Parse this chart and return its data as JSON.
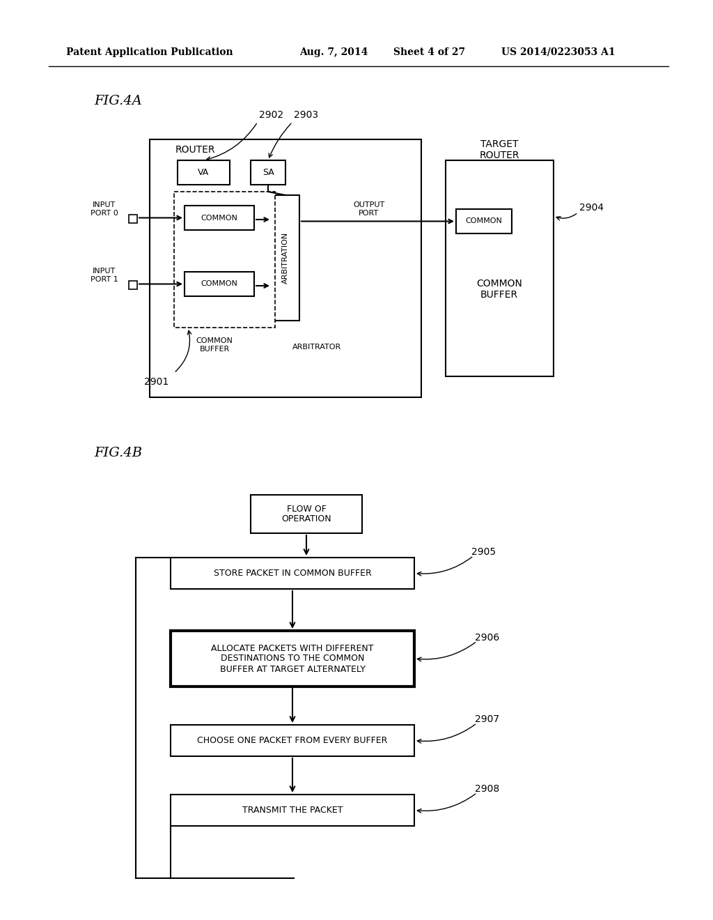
{
  "bg_color": "#ffffff",
  "header_text": "Patent Application Publication",
  "header_date": "Aug. 7, 2014",
  "header_sheet": "Sheet 4 of 27",
  "header_patent": "US 2014/0223053 A1",
  "fig4a_label": "FIG.4A",
  "fig4b_label": "FIG.4B",
  "router_label": "ROUTER",
  "target_router_label": "TARGET\nROUTER",
  "input_port0_label": "INPUT\nPORT 0",
  "input_port1_label": "INPUT\nPORT 1",
  "output_port_label": "OUTPUT\nPORT",
  "common_buffer_label_inner": "COMMON\nBUFFER",
  "common_buffer_label_outer": "COMMON\nBUFFER",
  "arbitrator_label": "ARBITRATOR",
  "arbitration_label": "ARBITRATION",
  "va_label": "VA",
  "sa_label": "SA",
  "common_label": "COMMON",
  "ref_2901": "2901",
  "ref_2902": "2902",
  "ref_2903": "2903",
  "ref_2904": "2904",
  "flow_label": "FLOW OF\nOPERATION",
  "box2905_label": "STORE PACKET IN COMMON BUFFER",
  "box2906_label": "ALLOCATE PACKETS WITH DIFFERENT\nDESTINATIONS TO THE COMMON\nBUFFER AT TARGET ALTERNATELY",
  "box2907_label": "CHOOSE ONE PACKET FROM EVERY BUFFER",
  "box2908_label": "TRANSMIT THE PACKET",
  "ref_2905": "2905",
  "ref_2906": "2906",
  "ref_2907": "2907",
  "ref_2908": "2908"
}
